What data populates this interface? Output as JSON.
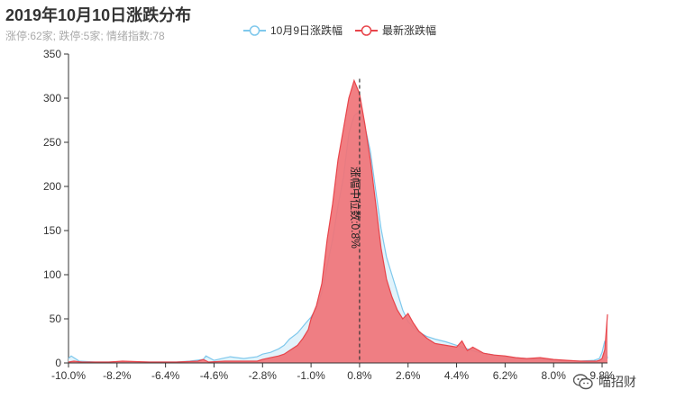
{
  "header": {
    "title": "2019年10月10日涨跌分布",
    "subtitle": "涨停:62家; 跌停:5家; 情绪指数:78"
  },
  "legend": [
    {
      "label": "10月9日涨跌幅",
      "color": "#7fc8ec",
      "fill": "#e2f3fb"
    },
    {
      "label": "最新涨跌幅",
      "color": "#e8454b",
      "fill": "#f07478"
    }
  ],
  "watermark": {
    "text": "喵招财"
  },
  "chart_data": {
    "type": "area",
    "ylim": [
      0,
      350
    ],
    "yticks": [
      0,
      50,
      100,
      150,
      200,
      250,
      300,
      350
    ],
    "xlim": [
      -10,
      10
    ],
    "xticks": [
      -10,
      -8.2,
      -6.4,
      -4.6,
      -2.8,
      -1,
      0.8,
      2.6,
      4.4,
      6.2,
      8,
      9.8
    ],
    "xtick_labels": [
      "-10.0%",
      "-8.2%",
      "-6.4%",
      "-4.6%",
      "-2.8%",
      "-1.0%",
      "0.8%",
      "2.6%",
      "4.4%",
      "6.2%",
      "8.0%",
      "9.8%"
    ],
    "median": {
      "x": 0.8,
      "label": "涨幅中位数:0.8%"
    },
    "series": [
      {
        "name": "10月9日涨跌幅",
        "x": [
          -10,
          -9.9,
          -9.6,
          -9,
          -8,
          -7,
          -6,
          -5.5,
          -5,
          -4.9,
          -4.6,
          -4.3,
          -4,
          -3.5,
          -3,
          -2.8,
          -2.5,
          -2.2,
          -2,
          -1.8,
          -1.5,
          -1.2,
          -1,
          -0.8,
          -0.6,
          -0.4,
          -0.2,
          0,
          0.2,
          0.4,
          0.6,
          0.8,
          1,
          1.2,
          1.4,
          1.6,
          1.8,
          2,
          2.2,
          2.4,
          2.6,
          2.8,
          3,
          3.3,
          3.6,
          4,
          4.4,
          4.8,
          5.2,
          5.6,
          6,
          6.5,
          7,
          7.5,
          8,
          8.5,
          9,
          9.5,
          9.7,
          9.8,
          9.9,
          10
        ],
        "y": [
          5,
          8,
          2,
          1,
          1,
          1,
          1,
          2,
          4,
          8,
          3,
          5,
          7,
          5,
          7,
          10,
          12,
          16,
          20,
          27,
          34,
          45,
          52,
          62,
          80,
          110,
          140,
          178,
          210,
          260,
          280,
          285,
          268,
          240,
          195,
          152,
          120,
          100,
          80,
          60,
          47,
          40,
          35,
          30,
          27,
          24,
          20,
          16,
          12,
          10,
          8,
          6,
          5,
          4,
          3,
          2,
          2,
          3,
          5,
          12,
          25,
          5
        ]
      },
      {
        "name": "最新涨跌幅",
        "x": [
          -10,
          -9.8,
          -9.5,
          -9,
          -8.5,
          -8,
          -7,
          -6,
          -5.2,
          -5,
          -4.8,
          -4.2,
          -3.6,
          -3,
          -2.8,
          -2.5,
          -2.2,
          -2,
          -1.8,
          -1.5,
          -1.3,
          -1.1,
          -1,
          -0.8,
          -0.6,
          -0.4,
          -0.2,
          0,
          0.2,
          0.4,
          0.6,
          0.8,
          1,
          1.2,
          1.4,
          1.6,
          1.8,
          2,
          2.2,
          2.4,
          2.6,
          2.8,
          3,
          3.3,
          3.6,
          4,
          4.4,
          4.6,
          4.8,
          5,
          5.4,
          5.8,
          6.2,
          6.6,
          7,
          7.5,
          8,
          8.5,
          9,
          9.4,
          9.6,
          9.7,
          9.8,
          9.9,
          10
        ],
        "y": [
          1,
          2,
          1,
          1,
          1,
          2,
          1,
          1,
          2,
          4,
          1,
          2,
          2,
          2,
          4,
          6,
          8,
          10,
          14,
          20,
          28,
          38,
          50,
          65,
          90,
          140,
          180,
          230,
          265,
          300,
          320,
          305,
          270,
          230,
          180,
          130,
          95,
          75,
          60,
          50,
          56,
          45,
          36,
          28,
          22,
          20,
          18,
          25,
          14,
          18,
          11,
          9,
          8,
          6,
          5,
          6,
          4,
          3,
          2,
          2,
          2,
          3,
          5,
          15,
          55
        ]
      }
    ]
  }
}
